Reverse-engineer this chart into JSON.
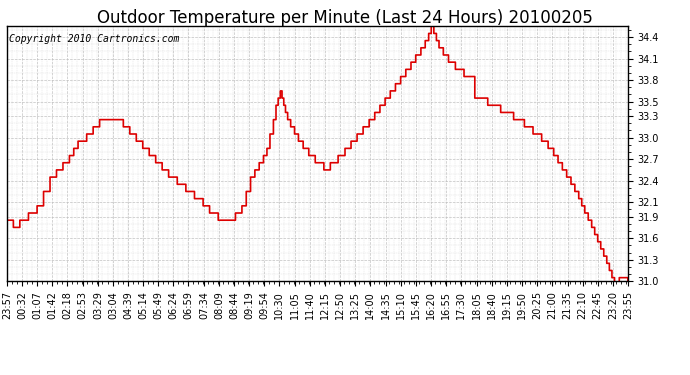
{
  "title": "Outdoor Temperature per Minute (Last 24 Hours) 20100205",
  "copyright_text": "Copyright 2010 Cartronics.com",
  "line_color": "#dd0000",
  "bg_color": "#ffffff",
  "plot_bg_color": "#ffffff",
  "grid_color": "#bbbbbb",
  "ylim": [
    31.0,
    34.5
  ],
  "yticks": [
    31.0,
    31.3,
    31.6,
    31.9,
    32.1,
    32.4,
    32.7,
    33.0,
    33.3,
    33.5,
    33.8,
    34.1,
    34.4
  ],
  "x_labels": [
    "23:57",
    "00:32",
    "01:07",
    "01:42",
    "02:18",
    "02:53",
    "03:29",
    "03:04",
    "04:39",
    "05:14",
    "05:49",
    "06:24",
    "06:59",
    "07:34",
    "08:09",
    "08:44",
    "09:19",
    "09:54",
    "10:30",
    "11:05",
    "11:40",
    "12:15",
    "12:50",
    "13:25",
    "14:00",
    "14:35",
    "15:10",
    "15:45",
    "16:20",
    "16:55",
    "17:30",
    "18:05",
    "18:40",
    "19:15",
    "19:50",
    "20:25",
    "21:00",
    "21:35",
    "22:10",
    "22:45",
    "23:20",
    "23:55"
  ],
  "title_fontsize": 12,
  "axis_fontsize": 7,
  "copyright_fontsize": 7,
  "line_width": 1.2
}
